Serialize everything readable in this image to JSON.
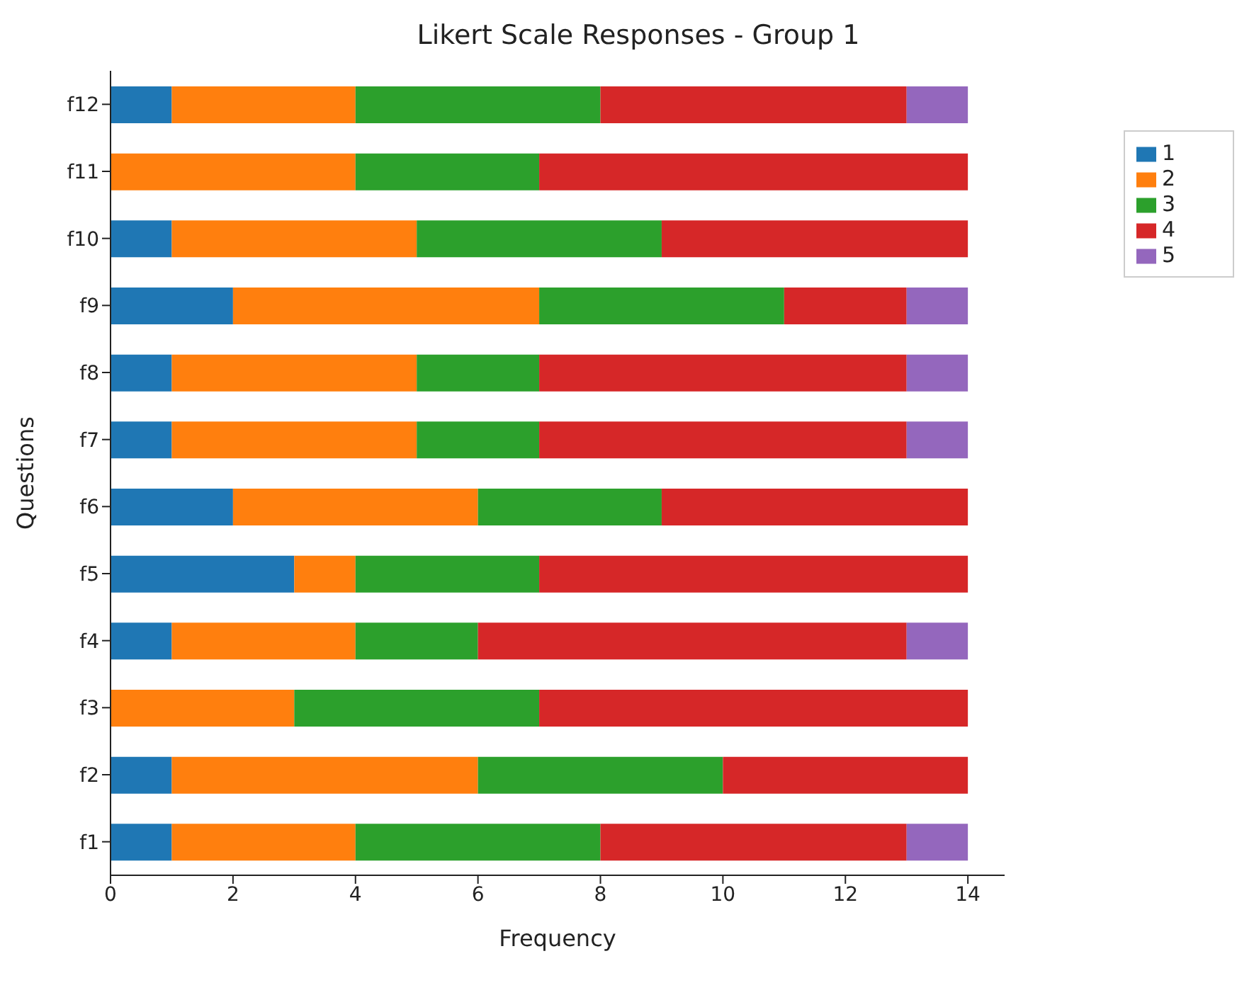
{
  "chart_data": {
    "type": "bar",
    "orientation": "horizontal",
    "stacked": true,
    "title": "Likert Scale Responses - Group 1",
    "xlabel": "Frequency",
    "ylabel": "Questions",
    "categories": [
      "f12",
      "f11",
      "f10",
      "f9",
      "f8",
      "f7",
      "f6",
      "f5",
      "f4",
      "f3",
      "f2",
      "f1"
    ],
    "series": [
      {
        "name": "1",
        "color": "#1f77b4",
        "values": [
          1,
          0,
          1,
          2,
          1,
          1,
          2,
          3,
          1,
          0,
          1,
          1
        ]
      },
      {
        "name": "2",
        "color": "#ff7f0e",
        "values": [
          3,
          4,
          4,
          5,
          4,
          4,
          4,
          1,
          3,
          3,
          5,
          3
        ]
      },
      {
        "name": "3",
        "color": "#2ca02c",
        "values": [
          4,
          3,
          4,
          4,
          2,
          2,
          3,
          3,
          2,
          4,
          4,
          4
        ]
      },
      {
        "name": "4",
        "color": "#d62728",
        "values": [
          5,
          7,
          5,
          2,
          6,
          6,
          5,
          7,
          7,
          7,
          4,
          5
        ]
      },
      {
        "name": "5",
        "color": "#9467bd",
        "values": [
          1,
          0,
          0,
          1,
          1,
          1,
          0,
          0,
          1,
          0,
          0,
          1
        ]
      }
    ],
    "xlim": [
      0,
      14.6
    ],
    "xticks": [
      0,
      2,
      4,
      6,
      8,
      10,
      12,
      14
    ],
    "legend": "top right",
    "grid": false
  }
}
